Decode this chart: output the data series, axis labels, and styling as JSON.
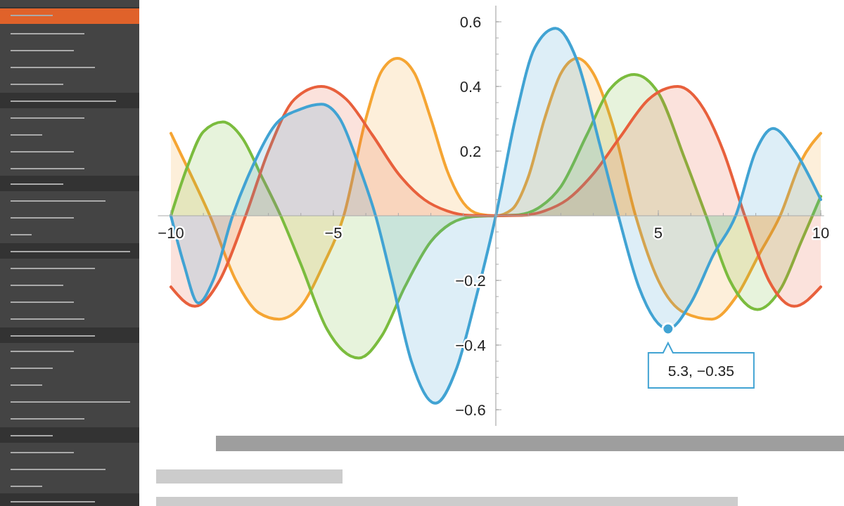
{
  "chart_data": {
    "type": "area",
    "xlim": [
      -10.4,
      10.1
    ],
    "ylim": [
      -0.65,
      0.65
    ],
    "xticks": [
      {
        "value": -10,
        "label": "−10"
      },
      {
        "value": -5,
        "label": "−5"
      },
      5,
      10
    ],
    "yticks": [
      {
        "value": -0.6,
        "label": "−0.6"
      },
      {
        "value": -0.4,
        "label": "−0.4"
      },
      {
        "value": -0.2,
        "label": "−0.2"
      },
      0.2,
      0.4,
      0.6
    ],
    "series": [
      {
        "color": "#f5a533",
        "x": [
          -10,
          -9.4,
          -8.8,
          -8,
          -7.3,
          -6.67,
          -6,
          -5.3,
          -4.68,
          -4,
          -3.5,
          -3.03,
          -2.5,
          -2,
          -1.5,
          -1,
          -0.5,
          0,
          0.5,
          1,
          1.5,
          2,
          2.51,
          3,
          3.6,
          4.3,
          5,
          5.8,
          6.65,
          7.4,
          8.1,
          8.75,
          9.4,
          10
        ],
        "values": [
          0.255,
          0.13,
          0,
          -0.2,
          -0.3,
          -0.32,
          -0.28,
          -0.15,
          0,
          0.3,
          0.45,
          0.487,
          0.44,
          0.3,
          0.14,
          0.04,
          0.005,
          0,
          0.02,
          0.12,
          0.3,
          0.44,
          0.487,
          0.44,
          0.28,
          0,
          -0.2,
          -0.3,
          -0.32,
          -0.25,
          -0.12,
          0,
          0.17,
          0.255
        ]
      },
      {
        "color": "#7bbc3e",
        "x": [
          -10,
          -9.5,
          -9,
          -8.4,
          -7.8,
          -7.2,
          -6.62,
          -6,
          -5.2,
          -4.22,
          -3.5,
          -2.8,
          -2,
          -1.4,
          -0.7,
          0,
          0.7,
          1.4,
          2,
          2.8,
          3.5,
          4.26,
          5,
          5.8,
          6.47,
          7.2,
          8.05,
          8.8,
          9.4,
          10
        ],
        "values": [
          0,
          0.15,
          0.26,
          0.29,
          0.24,
          0.12,
          0,
          -0.15,
          -0.35,
          -0.44,
          -0.37,
          -0.22,
          -0.08,
          -0.025,
          -0.003,
          0,
          0.003,
          0.03,
          0.09,
          0.25,
          0.39,
          0.437,
          0.38,
          0.18,
          0,
          -0.2,
          -0.29,
          -0.22,
          -0.08,
          0.06
        ]
      },
      {
        "color": "#e8603c",
        "x": [
          -10,
          -9.26,
          -8.5,
          -7.7,
          -7,
          -6.2,
          -5.37,
          -4.6,
          -3.8,
          -3,
          -2.2,
          -1.5,
          -0.8,
          0,
          0.8,
          1.5,
          2.2,
          3,
          3.8,
          4.7,
          5.6,
          6.4,
          7,
          7.66,
          8.4,
          9.18,
          10
        ],
        "values": [
          -0.22,
          -0.28,
          -0.2,
          0,
          0.2,
          0.36,
          0.4,
          0.36,
          0.25,
          0.13,
          0.05,
          0.015,
          0.001,
          0,
          0.001,
          0.015,
          0.05,
          0.13,
          0.24,
          0.36,
          0.4,
          0.33,
          0.2,
          0,
          -0.2,
          -0.28,
          -0.22
        ]
      },
      {
        "color": "#41a3d3",
        "x": [
          -10,
          -9.6,
          -9.16,
          -8.7,
          -8.1,
          -7.5,
          -6.8,
          -6,
          -5.37,
          -4.8,
          -4.2,
          -3.7,
          -3.2,
          -2.6,
          -1.86,
          -1.2,
          -0.6,
          0,
          0.6,
          1.2,
          1.84,
          2.5,
          3.2,
          3.77,
          4.4,
          5.3,
          6,
          6.7,
          7.38,
          8,
          8.53,
          9.2,
          10
        ],
        "values": [
          0,
          -0.15,
          -0.27,
          -0.2,
          0,
          0.15,
          0.28,
          0.33,
          0.345,
          0.3,
          0.15,
          0,
          -0.2,
          -0.45,
          -0.58,
          -0.47,
          -0.25,
          0,
          0.3,
          0.52,
          0.58,
          0.48,
          0.22,
          0,
          -0.22,
          -0.35,
          -0.27,
          -0.12,
          0,
          0.2,
          0.27,
          0.2,
          0.05
        ]
      }
    ],
    "annotations": [
      {
        "text": "5.3, −0.35",
        "x": 5.3,
        "y": -0.35
      }
    ]
  }
}
